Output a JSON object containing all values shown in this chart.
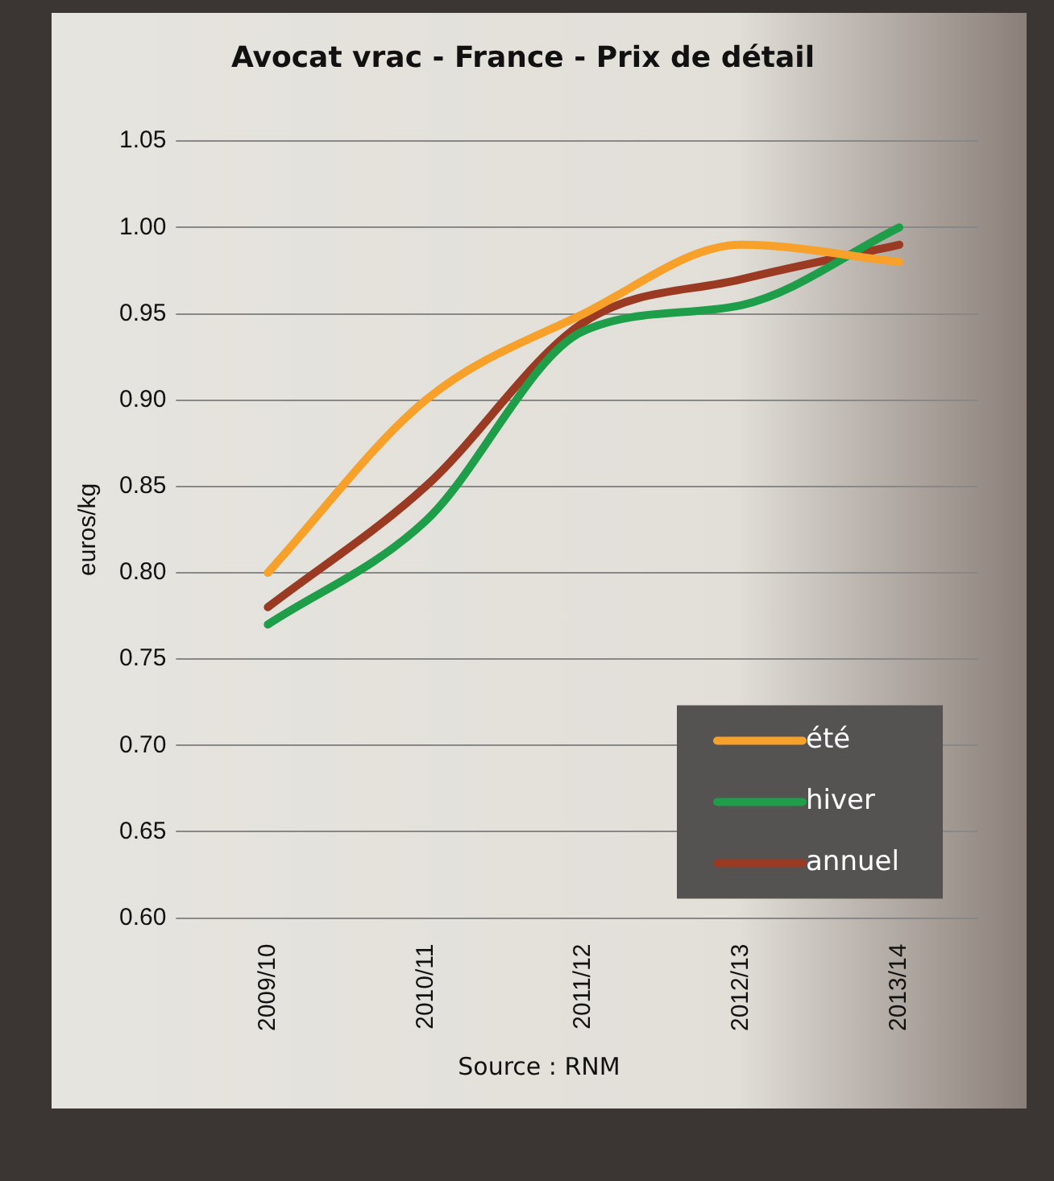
{
  "chart_data": {
    "type": "line",
    "title": "Avocat vrac - France - Prix de détail",
    "ylabel": "euros/kg",
    "categories": [
      "2009/10",
      "2010/11",
      "2011/12",
      "2012/13",
      "2013/14"
    ],
    "series": [
      {
        "name": "été",
        "color": "#f7a02a",
        "values": [
          0.8,
          0.9,
          0.95,
          0.99,
          0.98
        ]
      },
      {
        "name": "hiver",
        "color": "#1f9e4a",
        "values": [
          0.77,
          0.83,
          0.94,
          0.955,
          1.0
        ]
      },
      {
        "name": "annuel",
        "color": "#9a3a22",
        "values": [
          0.78,
          0.85,
          0.945,
          0.97,
          0.99
        ]
      }
    ],
    "ylim": [
      0.6,
      1.05
    ],
    "yticks": [
      {
        "value": 0.6,
        "label": "0.60"
      },
      {
        "value": 0.65,
        "label": "0.65"
      },
      {
        "value": 0.7,
        "label": "0.70"
      },
      {
        "value": 0.75,
        "label": "0.75"
      },
      {
        "value": 0.8,
        "label": "0.80"
      },
      {
        "value": 0.85,
        "label": "0.85"
      },
      {
        "value": 0.9,
        "label": "0.90"
      },
      {
        "value": 0.95,
        "label": "0.95"
      },
      {
        "value": 1.0,
        "label": "1.00"
      },
      {
        "value": 1.05,
        "label": "1.05"
      }
    ],
    "grid": "y",
    "legend": "bottom right",
    "marker": "none",
    "line_style": "solid",
    "annotations": [
      "Source : RNM"
    ]
  }
}
